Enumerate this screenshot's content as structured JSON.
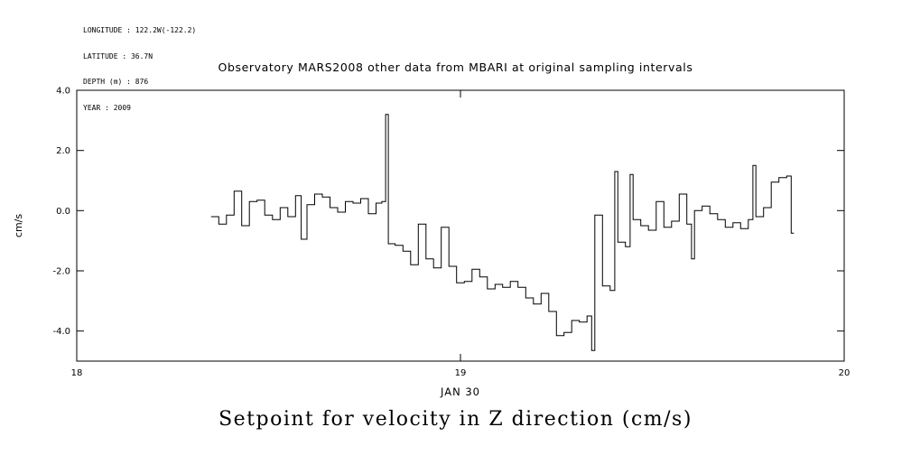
{
  "meta": {
    "longitude": "LONGITUDE : 122.2W(-122.2)",
    "latitude": "LATITUDE : 36.7N",
    "depth": "DEPTH (m) : 876",
    "year": "YEAR : 2009"
  },
  "header": {
    "title": "Observatory MARS2008 other data from MBARI at original sampling intervals"
  },
  "footer": {
    "caption": "Setpoint for velocity in Z direction (cm/s)"
  },
  "colors": {
    "line": "#000000",
    "background": "#ffffff"
  },
  "chart_data": {
    "type": "line",
    "style": "step",
    "title": "Observatory MARS2008 other data from MBARI at original sampling intervals",
    "xlabel": "JAN 30",
    "ylabel": "cm/s",
    "xlim": [
      18,
      20
    ],
    "ylim": [
      -5,
      4
    ],
    "grid": false,
    "legend": "none",
    "x_ticks": [
      18,
      19,
      20
    ],
    "x_tick_labels": [
      "18",
      "19",
      "20"
    ],
    "y_ticks": [
      4,
      2,
      0,
      -2,
      -4
    ],
    "y_tick_labels": [
      "4.0",
      "2.0",
      "0.0",
      "-2.0",
      "-4.0"
    ],
    "x": [
      18.35,
      18.37,
      18.39,
      18.41,
      18.43,
      18.45,
      18.47,
      18.49,
      18.51,
      18.53,
      18.55,
      18.57,
      18.585,
      18.6,
      18.62,
      18.64,
      18.66,
      18.68,
      18.7,
      18.72,
      18.74,
      18.76,
      18.78,
      18.795,
      18.805,
      18.812,
      18.83,
      18.85,
      18.87,
      18.89,
      18.91,
      18.93,
      18.95,
      18.97,
      18.99,
      19.01,
      19.03,
      19.05,
      19.07,
      19.09,
      19.11,
      19.13,
      19.15,
      19.17,
      19.19,
      19.21,
      19.23,
      19.25,
      19.27,
      19.29,
      19.31,
      19.33,
      19.342,
      19.35,
      19.37,
      19.39,
      19.402,
      19.41,
      19.43,
      19.442,
      19.45,
      19.47,
      19.49,
      19.51,
      19.53,
      19.55,
      19.57,
      19.59,
      19.602,
      19.61,
      19.63,
      19.65,
      19.67,
      19.69,
      19.71,
      19.73,
      19.75,
      19.762,
      19.77,
      19.79,
      19.81,
      19.83,
      19.85,
      19.862
    ],
    "y": [
      -0.2,
      -0.45,
      -0.15,
      0.65,
      -0.5,
      0.3,
      0.35,
      -0.15,
      -0.3,
      0.1,
      -0.2,
      0.5,
      -0.95,
      0.2,
      0.55,
      0.45,
      0.1,
      -0.05,
      0.3,
      0.25,
      0.4,
      -0.1,
      0.25,
      0.3,
      3.2,
      -1.1,
      -1.15,
      -1.35,
      -1.8,
      -0.45,
      -1.6,
      -1.9,
      -0.55,
      -1.85,
      -2.4,
      -2.35,
      -1.95,
      -2.2,
      -2.6,
      -2.45,
      -2.55,
      -2.35,
      -2.55,
      -2.9,
      -3.1,
      -2.75,
      -3.35,
      -4.15,
      -4.05,
      -3.65,
      -3.7,
      -3.5,
      -4.65,
      -0.15,
      -2.5,
      -2.65,
      1.3,
      -1.05,
      -1.2,
      1.2,
      -0.3,
      -0.5,
      -0.65,
      0.3,
      -0.55,
      -0.35,
      0.55,
      -0.45,
      -1.6,
      0.0,
      0.15,
      -0.1,
      -0.3,
      -0.55,
      -0.4,
      -0.6,
      -0.3,
      1.5,
      -0.2,
      0.1,
      0.95,
      1.1,
      1.15,
      -0.75
    ]
  }
}
